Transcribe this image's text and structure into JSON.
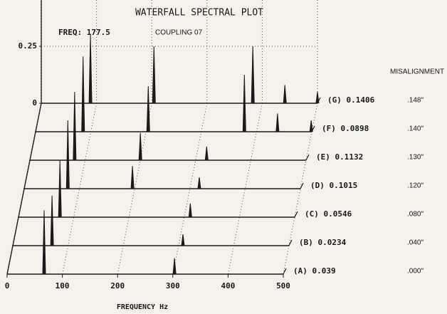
{
  "chart_data": {
    "type": "waterfall",
    "title": "WATERFALL SPECTRAL PLOT",
    "subtitle": "FREQ: 177.5",
    "annotation": "COUPLING 07",
    "legend_title": "MISALIGNMENT",
    "xlabel": "FREQUENCY Hz",
    "xlim": [
      0,
      500
    ],
    "xticks": [
      0,
      100,
      200,
      300,
      400,
      500
    ],
    "ylim": [
      0,
      0.5
    ],
    "yticks": [
      0,
      0.25,
      0.5
    ],
    "grid": true,
    "color": "#1a1a1a",
    "series": [
      {
        "name": "(A) 0.039",
        "misalignment": ".000\"",
        "x": [
          67,
          303
        ],
        "values": [
          0.28,
          0.07
        ]
      },
      {
        "name": "(B) 0.0234",
        "misalignment": ".040\"",
        "x": [
          71,
          308
        ],
        "values": [
          0.22,
          0.05
        ]
      },
      {
        "name": "(C) 0.0546",
        "misalignment": ".080\"",
        "x": [
          75,
          311
        ],
        "values": [
          0.25,
          0.06
        ]
      },
      {
        "name": "(D) 0.1015",
        "misalignment": ".120\"",
        "x": [
          79,
          196,
          317
        ],
        "values": [
          0.3,
          0.1,
          0.05
        ]
      },
      {
        "name": "(E) 0.1132",
        "misalignment": ".130\"",
        "x": [
          81,
          200,
          320
        ],
        "values": [
          0.3,
          0.12,
          0.06
        ]
      },
      {
        "name": "(F) 0.0898",
        "misalignment": ".140\"",
        "x": [
          86,
          204,
          378,
          438,
          499
        ],
        "values": [
          0.33,
          0.2,
          0.25,
          0.08,
          0.05
        ]
      },
      {
        "name": "(G) 0.1406",
        "misalignment": ".148\"",
        "x": [
          89,
          204,
          383,
          441,
          500
        ],
        "values": [
          0.3,
          0.25,
          0.25,
          0.08,
          0.05
        ]
      }
    ]
  }
}
